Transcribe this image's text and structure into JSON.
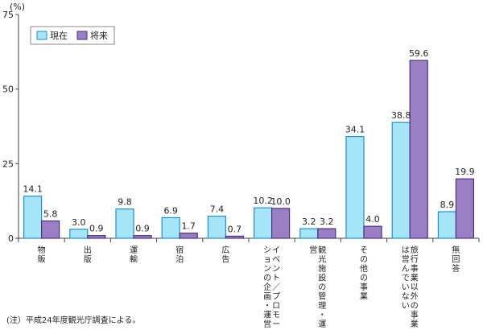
{
  "chart_data": {
    "type": "bar",
    "ylabel": "(%)",
    "ylim": [
      0,
      75
    ],
    "yticks": [
      0,
      25,
      50,
      75
    ],
    "grid": false,
    "legend_position": "top-left",
    "categories": [
      "物販",
      "出版",
      "運輸",
      "宿泊",
      "広告",
      "イベント／プロモーションの企画・運営",
      "観光施設の管理・運営",
      "その他の事業",
      "旅行事業以外の事業は営んでいない",
      "無回答"
    ],
    "series": [
      {
        "name": "現在",
        "values": [
          14.1,
          3.0,
          9.8,
          6.9,
          7.4,
          10.2,
          3.2,
          34.1,
          38.8,
          8.9
        ]
      },
      {
        "name": "将来",
        "values": [
          5.8,
          0.9,
          0.9,
          1.7,
          0.7,
          10.0,
          3.2,
          4.0,
          59.6,
          19.9
        ]
      }
    ],
    "note": "(注）平成24年度観光庁調査による。"
  },
  "colors": {
    "current_fill": "#a6e4f8",
    "current_stroke": "#1f8fcf",
    "future_fill": "#9a7fc4",
    "future_stroke": "#4d2f7f",
    "axis": "#444444"
  }
}
